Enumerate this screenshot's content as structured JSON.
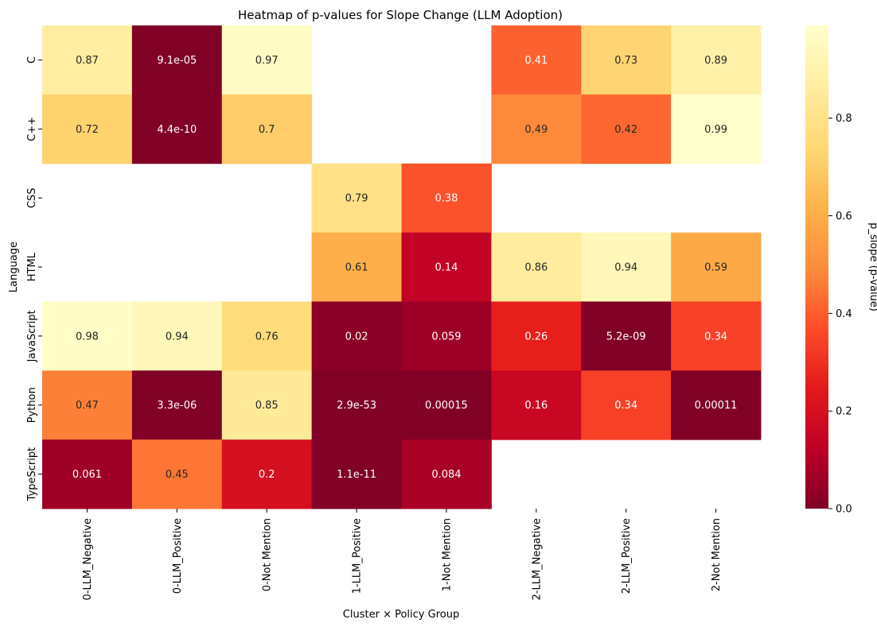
{
  "chart_data": {
    "type": "heatmap",
    "title": "Heatmap of p-values for Slope Change (LLM Adoption)",
    "xlabel": "Cluster × Policy Group",
    "ylabel": "Language",
    "rows": [
      "C",
      "C++",
      "CSS",
      "HTML",
      "JavaScript",
      "Python",
      "TypeScript"
    ],
    "columns": [
      "0-LLM_Negative",
      "0-LLM_Positive",
      "0-Not Mention",
      "1-LLM_Positive",
      "1-Not Mention",
      "2-LLM_Negative",
      "2-LLM_Positive",
      "2-Not Mention"
    ],
    "values": [
      [
        0.87,
        9.1e-05,
        0.97,
        null,
        null,
        0.41,
        0.73,
        0.89
      ],
      [
        0.72,
        4.4e-10,
        0.7,
        null,
        null,
        0.49,
        0.42,
        0.99
      ],
      [
        null,
        null,
        null,
        0.79,
        0.38,
        null,
        null,
        null
      ],
      [
        null,
        null,
        null,
        0.61,
        0.14,
        0.86,
        0.94,
        0.59
      ],
      [
        0.98,
        0.94,
        0.76,
        0.02,
        0.059,
        0.26,
        5.2e-09,
        0.34
      ],
      [
        0.47,
        3.3e-06,
        0.85,
        2.9e-53,
        0.00015,
        0.16,
        0.34,
        0.00011
      ],
      [
        0.061,
        0.45,
        0.2,
        1.1e-11,
        0.084,
        null,
        null,
        null
      ]
    ],
    "labels": [
      [
        "0.87",
        "9.1e-05",
        "0.97",
        "",
        "",
        "0.41",
        "0.73",
        "0.89"
      ],
      [
        "0.72",
        "4.4e-10",
        "0.7",
        "",
        "",
        "0.49",
        "0.42",
        "0.99"
      ],
      [
        "",
        "",
        "",
        "0.79",
        "0.38",
        "",
        "",
        ""
      ],
      [
        "",
        "",
        "",
        "0.61",
        "0.14",
        "0.86",
        "0.94",
        "0.59"
      ],
      [
        "0.98",
        "0.94",
        "0.76",
        "0.02",
        "0.059",
        "0.26",
        "5.2e-09",
        "0.34"
      ],
      [
        "0.47",
        "3.3e-06",
        "0.85",
        "2.9e-53",
        "0.00015",
        "0.16",
        "0.34",
        "0.00011"
      ],
      [
        "0.061",
        "0.45",
        "0.2",
        "1.1e-11",
        "0.084",
        "",
        "",
        ""
      ]
    ],
    "colormap": "YlOrRd_r",
    "colorbar": {
      "label": "p_slope (p-value)",
      "range": [
        0,
        0.99
      ],
      "ticks": [
        0.0,
        0.2,
        0.4,
        0.6,
        0.8
      ],
      "tick_labels": [
        "0.0",
        "0.2",
        "0.4",
        "0.6",
        "0.8"
      ]
    },
    "grid": false,
    "legend": "right"
  }
}
